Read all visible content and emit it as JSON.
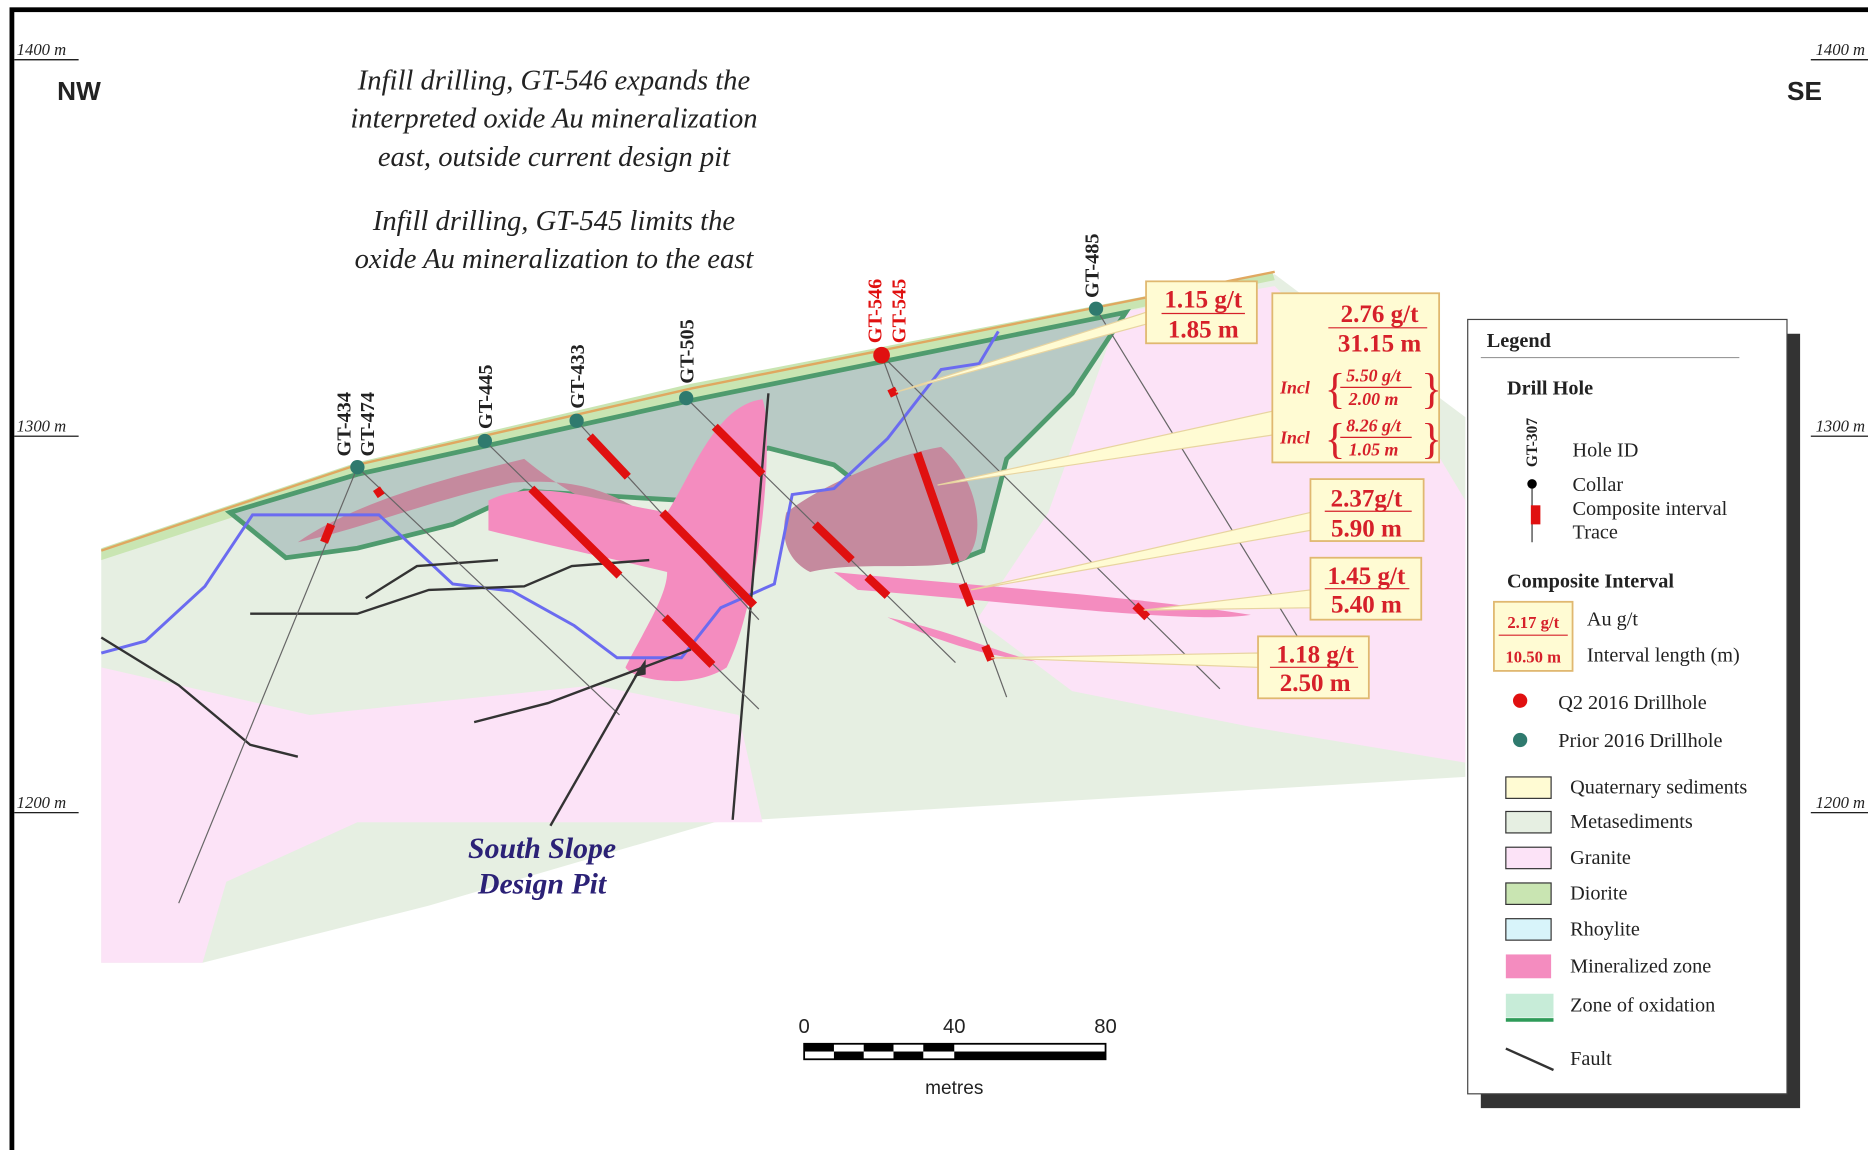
{
  "elevations": [
    "1400 m",
    "1300 m",
    "1200 m"
  ],
  "directions": {
    "left": "NW",
    "right": "SE"
  },
  "annotations": [
    [
      "Infill drilling, GT-546 expands the",
      "interpreted oxide Au mineralization",
      "east, outside current design pit"
    ],
    [
      "Infill drilling, GT-545 limits the",
      "oxide Au mineralization  to the east"
    ]
  ],
  "pit_label": [
    "South Slope",
    "Design Pit"
  ],
  "drill_holes": [
    "GT-434",
    "GT-474",
    "GT-445",
    "GT-433",
    "GT-505",
    "GT-546",
    "GT-545",
    "GT-485"
  ],
  "intervals": [
    {
      "grade": "1.15 g/t",
      "length": "1.85 m"
    },
    {
      "grade": "2.76 g/t",
      "length": "31.15 m",
      "includes": [
        {
          "prefix": "Incl",
          "grade": "5.50 g/t",
          "length": "2.00 m"
        },
        {
          "prefix": "Incl",
          "grade": "8.26 g/t",
          "length": "1.05 m"
        }
      ]
    },
    {
      "grade": "2.37g/t",
      "length": "5.90 m"
    },
    {
      "grade": "1.45 g/t",
      "length": "5.40 m"
    },
    {
      "grade": "1.18 g/t",
      "length": "2.50 m"
    }
  ],
  "scale_bar": {
    "ticks": [
      "0",
      "40",
      "80"
    ],
    "unit": "metres"
  },
  "legend": {
    "title": "Legend",
    "drill_hole": {
      "heading": "Drill Hole",
      "example_id": "GT-307",
      "items": [
        "Hole ID",
        "Collar",
        "Composite interval",
        "Trace"
      ]
    },
    "composite": {
      "heading": "Composite Interval",
      "grade": "2.17 g/t",
      "length": "10.50 m",
      "grade_label": "Au g/t",
      "length_label": "Interval length (m)"
    },
    "collars": [
      "Q2 2016 Drillhole",
      "Prior 2016 Drillhole"
    ],
    "units": [
      "Quaternary sediments",
      "Metasediments",
      "Granite",
      "Diorite",
      "Rhoylite",
      "Mineralized zone",
      "Zone of oxidation"
    ],
    "fault": "Fault"
  }
}
